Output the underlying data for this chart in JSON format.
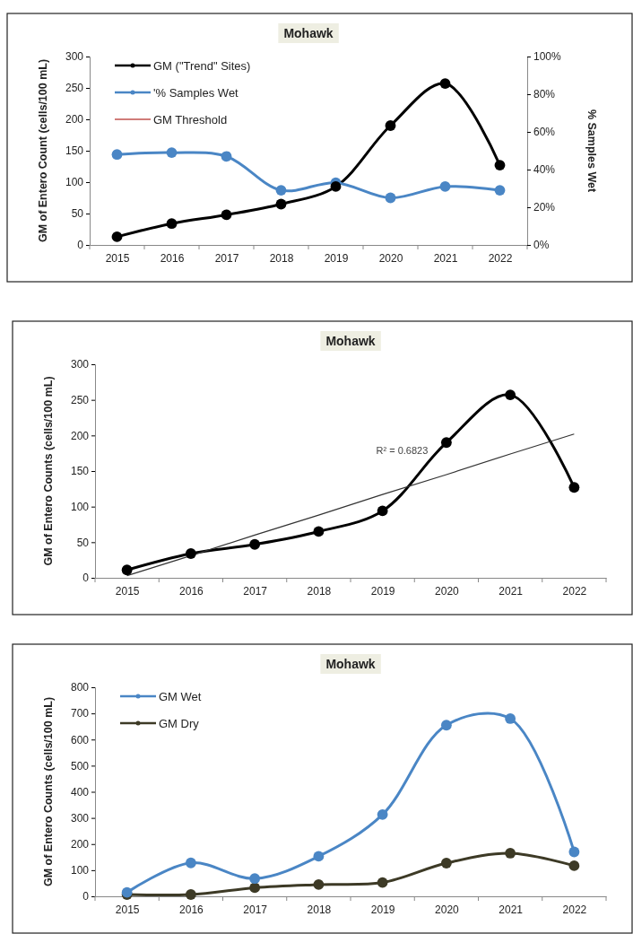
{
  "chart_data": [
    {
      "type": "line",
      "title": "Mohawk",
      "ylabel": "GM of Entero Count (cells/100 mL)",
      "y2label": "% Samples Wet",
      "categories": [
        "2015",
        "2016",
        "2017",
        "2018",
        "2019",
        "2020",
        "2021",
        "2022"
      ],
      "ylim": [
        0,
        300
      ],
      "yticks": [
        0,
        50,
        100,
        150,
        200,
        250,
        300
      ],
      "y2lim": [
        0,
        100
      ],
      "y2ticks": [
        {
          "value": 0,
          "label": "0%"
        },
        {
          "value": 20,
          "label": "20%"
        },
        {
          "value": 40,
          "label": "40%"
        },
        {
          "value": 60,
          "label": "60%"
        },
        {
          "value": 80,
          "label": "80%"
        },
        {
          "value": 100,
          "label": "100%"
        }
      ],
      "marker": "circle",
      "legend": "top left",
      "grid": false,
      "series": [
        {
          "name": "GM (\"Trend\" Sites)",
          "color": "#000000",
          "values": [
            13,
            34,
            48,
            65,
            93,
            190,
            257,
            127
          ]
        },
        {
          "name": "'% Samples Wet",
          "color": "#4a86c5",
          "axis": "y2",
          "values": [
            48,
            49,
            47,
            29,
            33,
            25,
            31,
            29
          ]
        },
        {
          "name": "GM Threshold",
          "color": "#c0504d",
          "values": [
            null,
            null,
            null,
            null,
            null,
            null,
            null,
            null
          ]
        }
      ]
    },
    {
      "type": "line",
      "title": "Mohawk",
      "ylabel": "GM of Entero Counts (cells/100 mL)",
      "categories": [
        "2015",
        "2016",
        "2017",
        "2018",
        "2019",
        "2020",
        "2021",
        "2022"
      ],
      "ylim": [
        0,
        300
      ],
      "yticks": [
        0,
        50,
        100,
        150,
        200,
        250,
        300
      ],
      "marker": "circle",
      "legend": false,
      "grid": false,
      "annotations": [
        "R² = 0.6823"
      ],
      "series": [
        {
          "color": "#000000",
          "values": [
            11,
            34,
            47,
            65,
            94,
            190,
            257,
            127
          ]
        },
        {
          "color": "#333333",
          "marker": "none",
          "values": [
            3,
            31,
            60,
            88,
            117,
            145,
            174,
            202
          ]
        }
      ]
    },
    {
      "type": "line",
      "title": "Mohawk",
      "ylabel": "GM of Entero Counts (cells/100 mL)",
      "categories": [
        "2015",
        "2016",
        "2017",
        "2018",
        "2019",
        "2020",
        "2021",
        "2022"
      ],
      "ylim": [
        0,
        800
      ],
      "yticks": [
        0,
        100,
        200,
        300,
        400,
        500,
        600,
        700,
        800
      ],
      "marker": "circle",
      "legend": "top left",
      "grid": false,
      "series": [
        {
          "name": "GM Wet",
          "color": "#4a86c5",
          "values": [
            15,
            128,
            68,
            153,
            313,
            655,
            680,
            170
          ]
        },
        {
          "name": "GM Dry",
          "color": "#3d3a26",
          "values": [
            7,
            7,
            33,
            45,
            53,
            127,
            165,
            117
          ]
        }
      ]
    }
  ]
}
